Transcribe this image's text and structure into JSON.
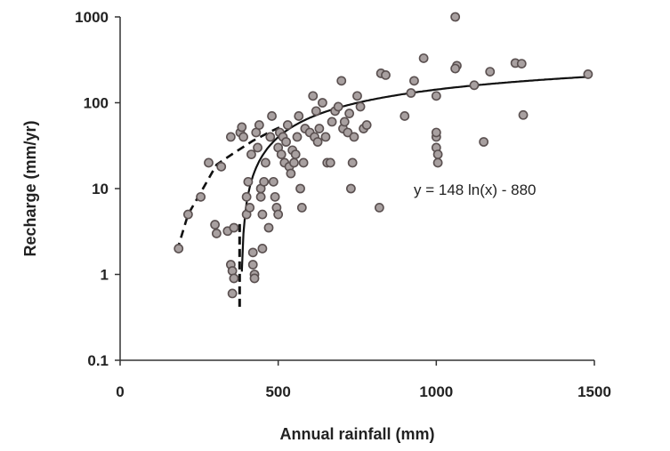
{
  "chart_data": {
    "type": "scatter",
    "xlabel": "Annual rainfall (mm)",
    "ylabel": "Recharge (mm/yr)",
    "xlim": [
      0,
      1500
    ],
    "ylim": [
      0.1,
      1000
    ],
    "y_scale": "log",
    "grid": false,
    "x_ticks": [
      "0",
      "500",
      "1000",
      "1500"
    ],
    "y_ticks": [
      "0.1",
      "1",
      "10",
      "100",
      "1000"
    ],
    "annotation": "y = 148 ln(x) - 880",
    "fit_line": {
      "a": 148,
      "b": -880,
      "x_start": 385,
      "x_end": 1480
    },
    "dashed_curve": [
      [
        180,
        1.9
      ],
      [
        215,
        5
      ],
      [
        255,
        9
      ],
      [
        305,
        19
      ],
      [
        360,
        26
      ],
      [
        420,
        36
      ],
      [
        480,
        47
      ],
      [
        520,
        55
      ]
    ],
    "dashed_vertical": {
      "x": 378,
      "y_from": 0.42,
      "y_to": 4
    },
    "points": [
      [
        185,
        2
      ],
      [
        215,
        5
      ],
      [
        255,
        8
      ],
      [
        280,
        20
      ],
      [
        300,
        3.8
      ],
      [
        305,
        3
      ],
      [
        320,
        18
      ],
      [
        340,
        3.2
      ],
      [
        350,
        40
      ],
      [
        350,
        1.3
      ],
      [
        355,
        1.1
      ],
      [
        360,
        0.9
      ],
      [
        355,
        0.6
      ],
      [
        360,
        3.5
      ],
      [
        380,
        45
      ],
      [
        385,
        52
      ],
      [
        390,
        40
      ],
      [
        400,
        5
      ],
      [
        400,
        8
      ],
      [
        405,
        12
      ],
      [
        410,
        6
      ],
      [
        415,
        25
      ],
      [
        420,
        1.8
      ],
      [
        420,
        1.3
      ],
      [
        425,
        1
      ],
      [
        425,
        0.9
      ],
      [
        430,
        45
      ],
      [
        435,
        30
      ],
      [
        440,
        55
      ],
      [
        445,
        10
      ],
      [
        445,
        8
      ],
      [
        450,
        5
      ],
      [
        450,
        2
      ],
      [
        455,
        12
      ],
      [
        460,
        20
      ],
      [
        470,
        3.5
      ],
      [
        475,
        40
      ],
      [
        480,
        70
      ],
      [
        485,
        12
      ],
      [
        490,
        8
      ],
      [
        495,
        6
      ],
      [
        500,
        5
      ],
      [
        500,
        30
      ],
      [
        505,
        45
      ],
      [
        510,
        25
      ],
      [
        515,
        40
      ],
      [
        520,
        20
      ],
      [
        525,
        35
      ],
      [
        530,
        55
      ],
      [
        535,
        18
      ],
      [
        540,
        15
      ],
      [
        545,
        28
      ],
      [
        550,
        20
      ],
      [
        555,
        25
      ],
      [
        560,
        40
      ],
      [
        565,
        70
      ],
      [
        570,
        10
      ],
      [
        575,
        6
      ],
      [
        580,
        20
      ],
      [
        585,
        50
      ],
      [
        600,
        45
      ],
      [
        610,
        120
      ],
      [
        615,
        40
      ],
      [
        620,
        80
      ],
      [
        625,
        35
      ],
      [
        630,
        50
      ],
      [
        640,
        100
      ],
      [
        650,
        40
      ],
      [
        655,
        20
      ],
      [
        665,
        20
      ],
      [
        670,
        60
      ],
      [
        680,
        80
      ],
      [
        690,
        90
      ],
      [
        700,
        180
      ],
      [
        705,
        50
      ],
      [
        710,
        60
      ],
      [
        720,
        45
      ],
      [
        725,
        75
      ],
      [
        730,
        10
      ],
      [
        735,
        20
      ],
      [
        740,
        40
      ],
      [
        750,
        120
      ],
      [
        760,
        90
      ],
      [
        770,
        50
      ],
      [
        780,
        55
      ],
      [
        820,
        6
      ],
      [
        825,
        220
      ],
      [
        840,
        210
      ],
      [
        900,
        70
      ],
      [
        920,
        130
      ],
      [
        930,
        180
      ],
      [
        960,
        330
      ],
      [
        1000,
        120
      ],
      [
        1000,
        40
      ],
      [
        1000,
        30
      ],
      [
        1000,
        45
      ],
      [
        1005,
        25
      ],
      [
        1005,
        20
      ],
      [
        1060,
        1000
      ],
      [
        1065,
        270
      ],
      [
        1060,
        250
      ],
      [
        1120,
        160
      ],
      [
        1150,
        35
      ],
      [
        1170,
        230
      ],
      [
        1250,
        290
      ],
      [
        1270,
        285
      ],
      [
        1275,
        72
      ],
      [
        1480,
        215
      ]
    ]
  }
}
